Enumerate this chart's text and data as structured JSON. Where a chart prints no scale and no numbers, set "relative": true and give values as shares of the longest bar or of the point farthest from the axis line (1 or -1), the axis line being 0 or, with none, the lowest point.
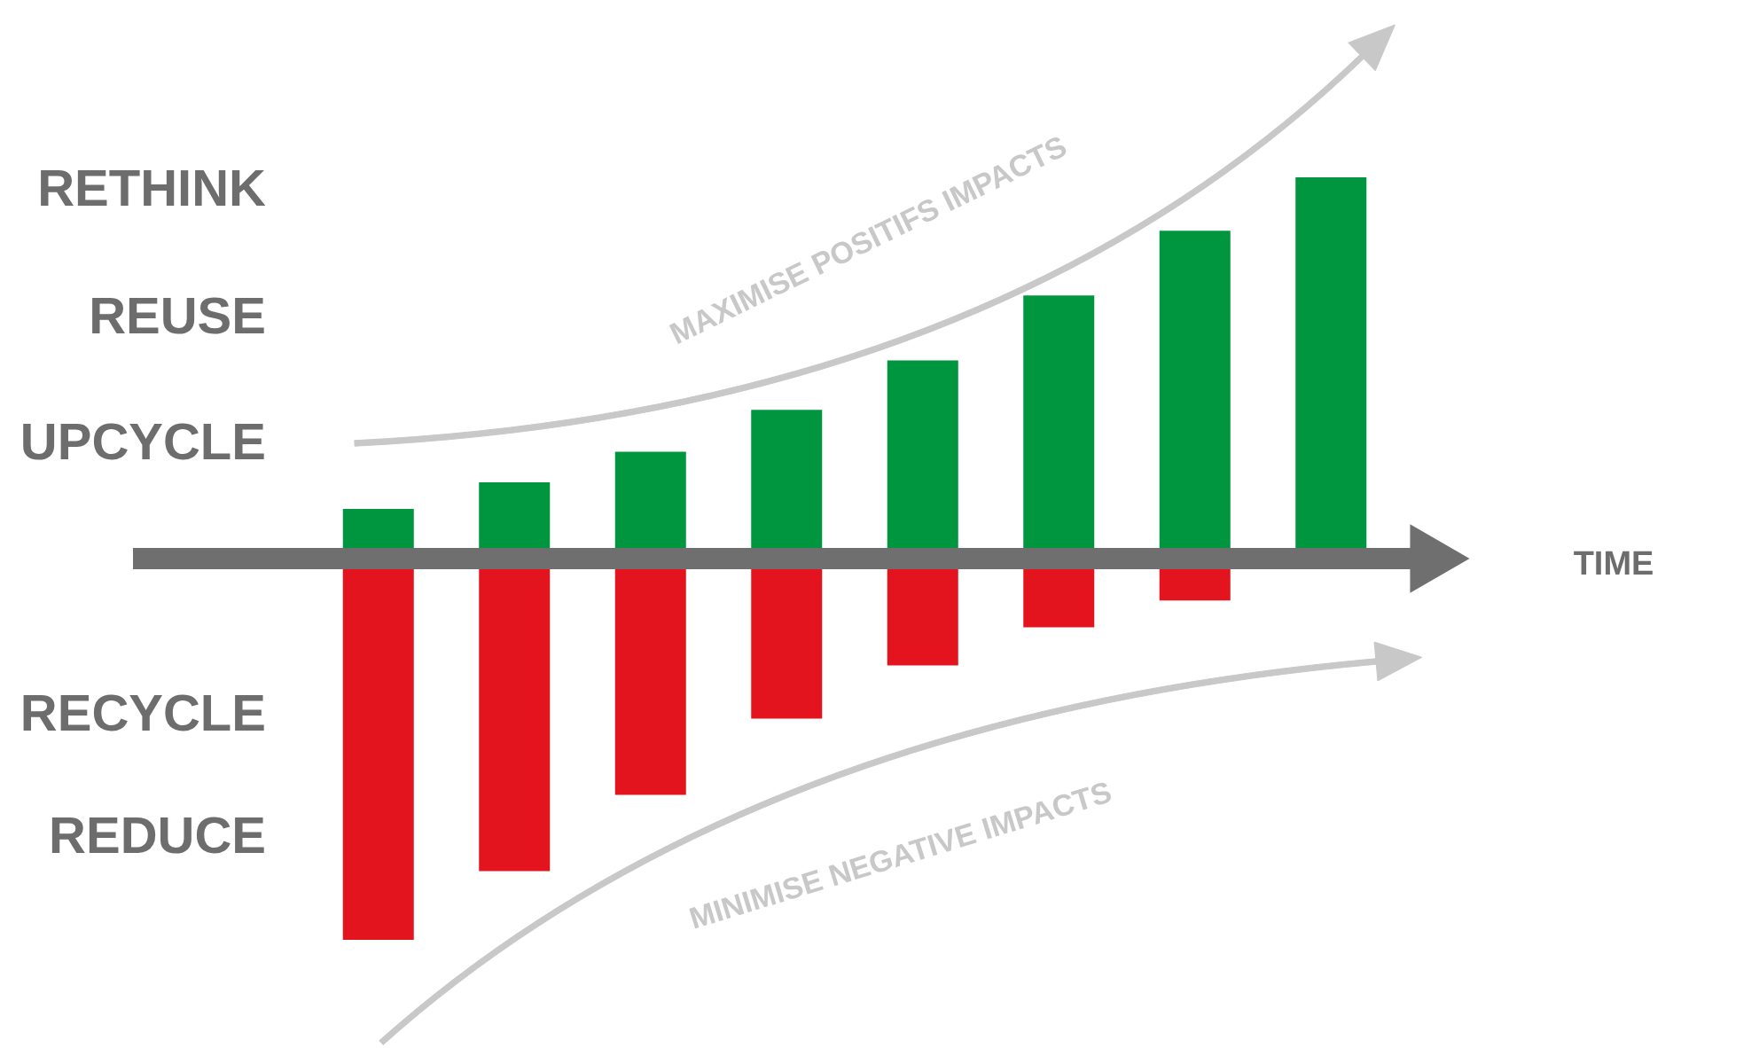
{
  "chart_data": {
    "type": "bar",
    "relative": true,
    "stacked": true,
    "categories": [
      null,
      null,
      null,
      null,
      null,
      null,
      null,
      null
    ],
    "series": [
      {
        "color": "#00963f",
        "values": [
          0.13,
          0.2,
          0.28,
          0.39,
          0.52,
          0.69,
          0.86,
          1.0
        ]
      },
      {
        "color": "#e3141d",
        "values": [
          -1.0,
          -0.82,
          -0.62,
          -0.42,
          -0.28,
          -0.18,
          -0.11,
          null
        ]
      }
    ],
    "annotations": [
      "RETHINK",
      "REUSE",
      "UPCYCLE",
      "RECYCLE",
      "REDUCE",
      "MAXIMISE POSITIFS IMPACTS",
      "MINIMISE NEGATIVE IMPACTS",
      "TIME"
    ]
  }
}
